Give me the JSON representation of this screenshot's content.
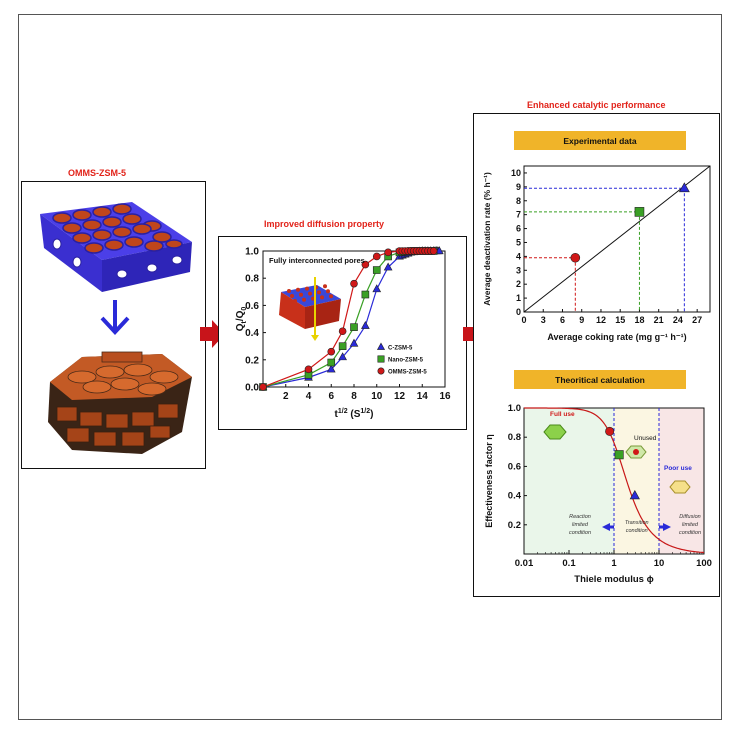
{
  "left": {
    "title": "OMMS-ZSM-5"
  },
  "middle": {
    "title": "Improved diffusion property",
    "inset_label": "Fully interconnected pores",
    "chart_data": {
      "type": "line",
      "xlabel": "t",
      "xlabel_sup": "1/2",
      "xlabel_unit": "(S",
      "xlabel_unit_sup": "1/2",
      "xlabel_unit_end": ")",
      "ylabel_main": "Q",
      "ylabel_sub_t": "t",
      "ylabel_slash": "/Q",
      "ylabel_sub_0": "0",
      "xlim": [
        0,
        16
      ],
      "ylim": [
        0,
        1.0
      ],
      "xticks": [
        "2",
        "4",
        "6",
        "8",
        "10",
        "12",
        "14",
        "16"
      ],
      "yticks": [
        "0.0",
        "0.2",
        "0.4",
        "0.6",
        "0.8",
        "1.0"
      ],
      "legend_position": "lower-right",
      "series": [
        {
          "name": "C-ZSM-5",
          "marker": "triangle",
          "color": "#2a2ad8",
          "x": [
            0,
            4,
            6,
            7,
            8,
            9,
            10,
            11,
            12,
            13,
            14,
            15,
            15.5
          ],
          "y": [
            0,
            0.07,
            0.13,
            0.22,
            0.32,
            0.45,
            0.72,
            0.88,
            0.96,
            0.99,
            1.0,
            1.0,
            1.0
          ]
        },
        {
          "name": "Nano-ZSM-5",
          "marker": "square",
          "color": "#3aa025",
          "x": [
            0,
            4,
            6,
            7,
            8,
            9,
            10,
            11,
            12,
            13,
            14,
            15
          ],
          "y": [
            0,
            0.09,
            0.18,
            0.3,
            0.44,
            0.68,
            0.86,
            0.96,
            0.99,
            1.0,
            1.0,
            1.0
          ]
        },
        {
          "name": "OMMS-ZSM-5",
          "marker": "circle",
          "color": "#d01818",
          "x": [
            0,
            4,
            6,
            7,
            8,
            9,
            10,
            11,
            12,
            13,
            14,
            15
          ],
          "y": [
            0,
            0.13,
            0.26,
            0.41,
            0.76,
            0.9,
            0.96,
            0.99,
            1.0,
            1.0,
            1.0,
            1.0
          ]
        }
      ]
    }
  },
  "right": {
    "title": "Enhanced catalytic performance",
    "exp_label": "Experimental data",
    "theory_label": "Theoritical calculation",
    "exp_chart": {
      "type": "scatter",
      "xlabel": "Average coking rate (mg g⁻¹ h⁻¹)",
      "ylabel": "Average deactivation rate (% h⁻¹)",
      "xlim": [
        0,
        29
      ],
      "ylim": [
        0,
        10.5
      ],
      "xticks": [
        "0",
        "3",
        "6",
        "9",
        "12",
        "15",
        "18",
        "21",
        "24",
        "27"
      ],
      "yticks": [
        "0",
        "1",
        "2",
        "3",
        "4",
        "5",
        "6",
        "7",
        "8",
        "9",
        "10"
      ],
      "points": [
        {
          "x": 8,
          "y": 3.9,
          "marker": "circle",
          "color": "#d01818"
        },
        {
          "x": 18,
          "y": 7.2,
          "marker": "square",
          "color": "#3aa025"
        },
        {
          "x": 25,
          "y": 8.9,
          "marker": "triangle",
          "color": "#2a2ad8"
        }
      ]
    },
    "theory_chart": {
      "type": "line",
      "xlabel": "Thiele modulus ϕ",
      "ylabel": "Effectiveness factor  η",
      "xscale": "log",
      "xlim": [
        0.01,
        100
      ],
      "ylim": [
        0,
        1.0
      ],
      "xticks": [
        "0.01",
        "0.1",
        "1",
        "10",
        "100"
      ],
      "yticks": [
        "0.2",
        "0.4",
        "0.6",
        "0.8",
        "1.0"
      ],
      "full_use": "Full use",
      "unused": "Unused",
      "poor_use": "Poor use",
      "reaction_lines": [
        "Reaction",
        "limited",
        "condition"
      ],
      "transition_lines": [
        "Transition",
        "condition"
      ],
      "diffusion_lines": [
        "Diffusion",
        "limited",
        "condition"
      ],
      "points": [
        {
          "x": 0.8,
          "y": 0.84,
          "marker": "circle",
          "color": "#d01818"
        },
        {
          "x": 1.3,
          "y": 0.68,
          "marker": "square",
          "color": "#3aa025"
        },
        {
          "x": 2.9,
          "y": 0.4,
          "marker": "triangle",
          "color": "#2a2ad8"
        }
      ]
    }
  },
  "colors": {
    "accent_red": "#e2231a",
    "label_gold": "#f0b429",
    "blue": "#2a2ad8",
    "green": "#3aa025",
    "red": "#d01818"
  }
}
